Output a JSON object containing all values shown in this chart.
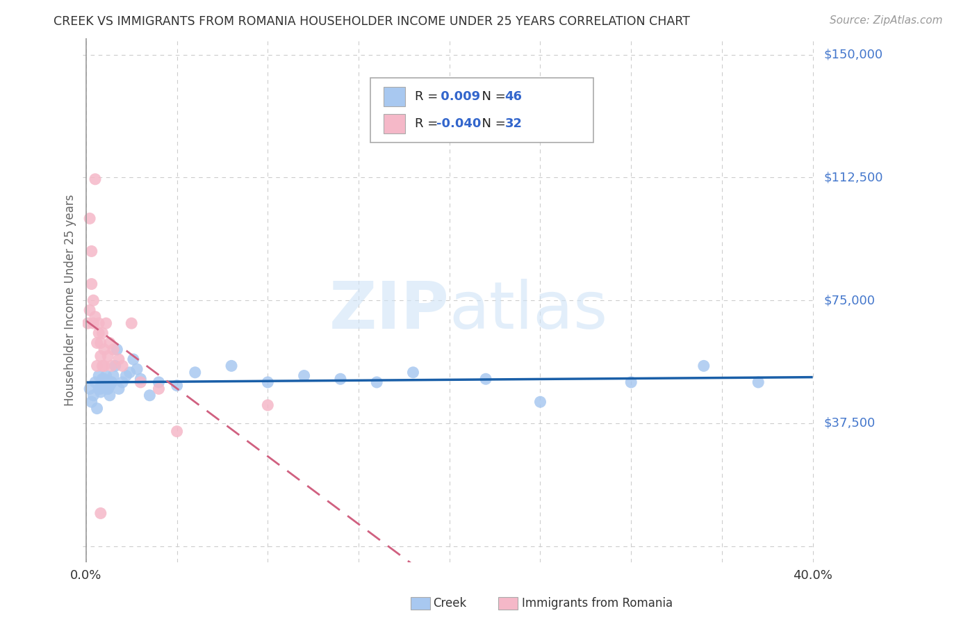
{
  "title": "CREEK VS IMMIGRANTS FROM ROMANIA HOUSEHOLDER INCOME UNDER 25 YEARS CORRELATION CHART",
  "source": "Source: ZipAtlas.com",
  "ylabel": "Householder Income Under 25 years",
  "watermark": "ZIPatlas",
  "creek_R": 0.009,
  "creek_N": 46,
  "romania_R": -0.04,
  "romania_N": 32,
  "xlim": [
    -0.002,
    0.402
  ],
  "ylim": [
    -5000,
    155000
  ],
  "ytick_vals": [
    0,
    37500,
    75000,
    112500,
    150000
  ],
  "ytick_labels": [
    "",
    "$37,500",
    "$75,000",
    "$112,500",
    "$150,000"
  ],
  "xtick_vals": [
    0.0,
    0.05,
    0.1,
    0.15,
    0.2,
    0.25,
    0.3,
    0.35,
    0.4
  ],
  "xtick_labels": [
    "0.0%",
    "",
    "",
    "",
    "",
    "",
    "",
    "",
    "40.0%"
  ],
  "creek_color": "#a8c8f0",
  "creek_line_color": "#1a5fa8",
  "romania_color": "#f5b8c8",
  "romania_line_color": "#d06080",
  "background_color": "#ffffff",
  "grid_color": "#cccccc",
  "title_color": "#333333",
  "ylabel_color": "#666666",
  "right_label_color": "#4477cc",
  "creek_x": [
    0.002,
    0.003,
    0.004,
    0.005,
    0.006,
    0.007,
    0.007,
    0.008,
    0.009,
    0.01,
    0.011,
    0.012,
    0.013,
    0.014,
    0.015,
    0.016,
    0.017,
    0.018,
    0.02,
    0.022,
    0.024,
    0.026,
    0.028,
    0.03,
    0.035,
    0.04,
    0.05,
    0.06,
    0.08,
    0.1,
    0.12,
    0.14,
    0.16,
    0.18,
    0.22,
    0.25,
    0.3,
    0.34,
    0.37,
    0.008,
    0.009,
    0.01,
    0.011,
    0.012,
    0.013,
    0.014
  ],
  "creek_y": [
    48000,
    44000,
    46000,
    50000,
    42000,
    48000,
    52000,
    47000,
    51000,
    49000,
    50000,
    48000,
    46000,
    50000,
    52000,
    55000,
    60000,
    48000,
    50000,
    52000,
    53000,
    57000,
    54000,
    51000,
    46000,
    50000,
    49000,
    53000,
    55000,
    50000,
    52000,
    51000,
    50000,
    53000,
    51000,
    44000,
    50000,
    55000,
    50000,
    48000,
    50000,
    51000,
    52000,
    48000,
    49000,
    50000
  ],
  "romania_x": [
    0.001,
    0.002,
    0.002,
    0.003,
    0.003,
    0.004,
    0.004,
    0.005,
    0.005,
    0.006,
    0.006,
    0.007,
    0.007,
    0.008,
    0.008,
    0.009,
    0.009,
    0.01,
    0.01,
    0.011,
    0.012,
    0.013,
    0.014,
    0.015,
    0.018,
    0.02,
    0.025,
    0.03,
    0.04,
    0.05,
    0.008,
    0.1
  ],
  "romania_y": [
    68000,
    100000,
    72000,
    90000,
    80000,
    68000,
    75000,
    112000,
    70000,
    62000,
    55000,
    65000,
    68000,
    58000,
    62000,
    65000,
    55000,
    60000,
    55000,
    68000,
    58000,
    62000,
    55000,
    60000,
    57000,
    55000,
    68000,
    50000,
    48000,
    35000,
    10000,
    43000
  ]
}
